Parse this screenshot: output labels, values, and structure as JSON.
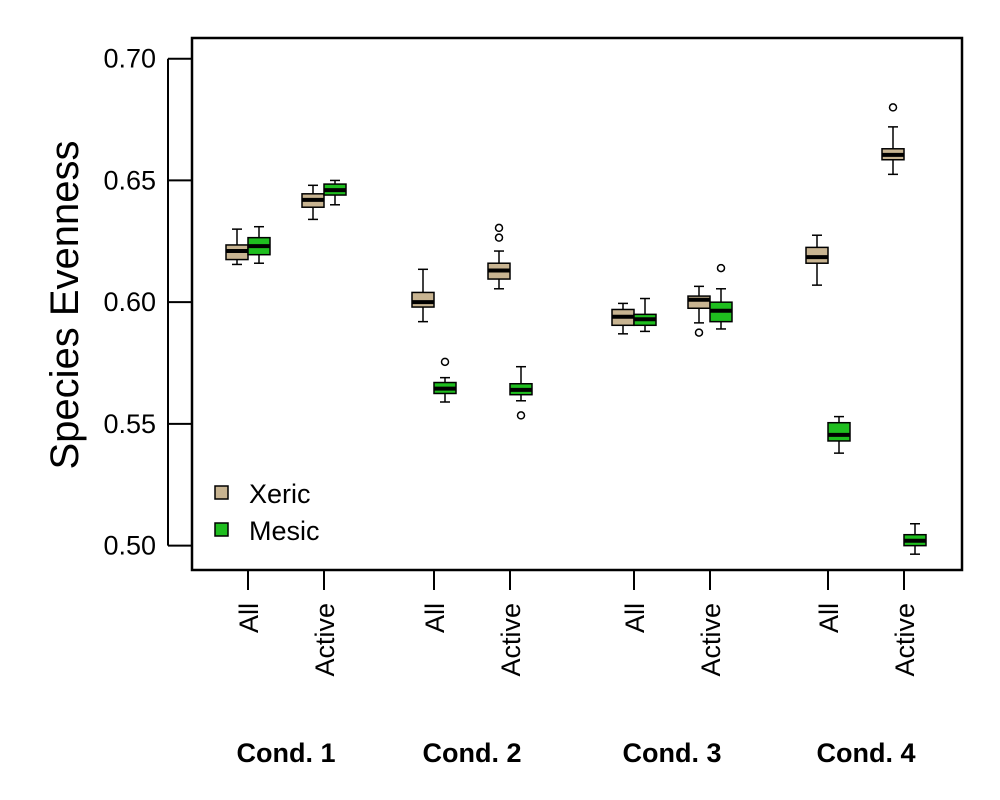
{
  "chart_data": {
    "type": "boxplot",
    "title": "",
    "xlabel": "",
    "ylabel": "Species Evenness",
    "ylim": [
      0.49,
      0.7085
    ],
    "yticks": [
      "0.70",
      "0.65",
      "0.60",
      "0.55",
      "0.50"
    ],
    "legend": {
      "position": "bottom-left",
      "entries": [
        {
          "name": "Xeric",
          "color": "#c8b491"
        },
        {
          "name": "Mesic",
          "color": "#1fbe1f"
        }
      ]
    },
    "groups": [
      {
        "label": "Cond. 1",
        "categories": [
          {
            "label": "All",
            "xeric": {
              "min": 0.6155,
              "q1": 0.6175,
              "median": 0.621,
              "q3": 0.6235,
              "max": 0.63,
              "outliers": []
            },
            "mesic": {
              "min": 0.616,
              "q1": 0.6195,
              "median": 0.623,
              "q3": 0.6265,
              "max": 0.631,
              "outliers": []
            }
          },
          {
            "label": "Active",
            "xeric": {
              "min": 0.634,
              "q1": 0.639,
              "median": 0.642,
              "q3": 0.6445,
              "max": 0.648,
              "outliers": []
            },
            "mesic": {
              "min": 0.64,
              "q1": 0.644,
              "median": 0.646,
              "q3": 0.6485,
              "max": 0.65,
              "outliers": []
            }
          }
        ]
      },
      {
        "label": "Cond. 2",
        "categories": [
          {
            "label": "All",
            "xeric": {
              "min": 0.592,
              "q1": 0.598,
              "median": 0.6,
              "q3": 0.604,
              "max": 0.6135,
              "outliers": []
            },
            "mesic": {
              "min": 0.559,
              "q1": 0.5625,
              "median": 0.5645,
              "q3": 0.567,
              "max": 0.569,
              "outliers": [
                0.5755
              ]
            }
          },
          {
            "label": "Active",
            "xeric": {
              "min": 0.6055,
              "q1": 0.6095,
              "median": 0.613,
              "q3": 0.616,
              "max": 0.621,
              "outliers": [
                0.6265,
                0.6305
              ]
            },
            "mesic": {
              "min": 0.5595,
              "q1": 0.562,
              "median": 0.564,
              "q3": 0.5665,
              "max": 0.5735,
              "outliers": [
                0.5535
              ]
            }
          }
        ]
      },
      {
        "label": "Cond. 3",
        "categories": [
          {
            "label": "All",
            "xeric": {
              "min": 0.587,
              "q1": 0.5905,
              "median": 0.594,
              "q3": 0.597,
              "max": 0.5995,
              "outliers": []
            },
            "mesic": {
              "min": 0.588,
              "q1": 0.5905,
              "median": 0.593,
              "q3": 0.595,
              "max": 0.6015,
              "outliers": []
            }
          },
          {
            "label": "Active",
            "xeric": {
              "min": 0.5915,
              "q1": 0.5975,
              "median": 0.601,
              "q3": 0.6025,
              "max": 0.6065,
              "outliers": [
                0.5875
              ]
            },
            "mesic": {
              "min": 0.589,
              "q1": 0.592,
              "median": 0.5965,
              "q3": 0.6,
              "max": 0.6055,
              "outliers": [
                0.614
              ]
            }
          }
        ]
      },
      {
        "label": "Cond. 4",
        "categories": [
          {
            "label": "All",
            "xeric": {
              "min": 0.607,
              "q1": 0.616,
              "median": 0.6185,
              "q3": 0.6225,
              "max": 0.6275,
              "outliers": []
            },
            "mesic": {
              "min": 0.538,
              "q1": 0.543,
              "median": 0.5455,
              "q3": 0.5505,
              "max": 0.553,
              "outliers": []
            }
          },
          {
            "label": "Active",
            "xeric": {
              "min": 0.6525,
              "q1": 0.6585,
              "median": 0.6605,
              "q3": 0.663,
              "max": 0.672,
              "outliers": [
                0.68
              ]
            },
            "mesic": {
              "min": 0.4965,
              "q1": 0.5,
              "median": 0.502,
              "q3": 0.5045,
              "max": 0.509,
              "outliers": []
            }
          }
        ]
      }
    ]
  }
}
